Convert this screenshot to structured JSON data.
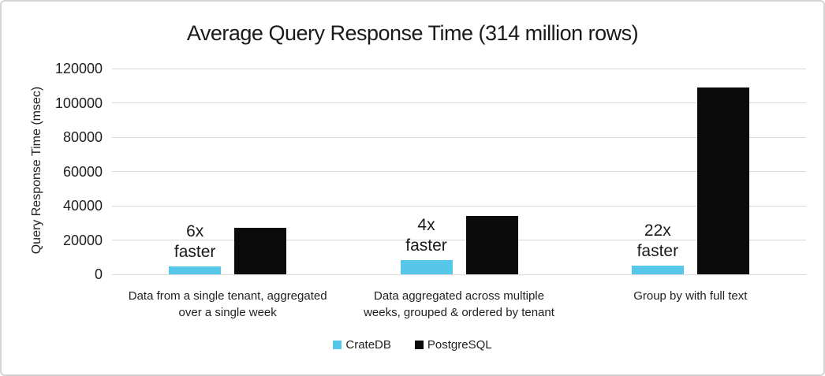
{
  "frame": {
    "background": "#ffffff",
    "border_color": "#d4d4d4"
  },
  "chart_data": {
    "type": "bar",
    "title": "Average Query Response Time (314 million rows)",
    "xlabel": "",
    "ylabel": "Query Response Time (msec)",
    "ylim": [
      0,
      120000
    ],
    "ytick_step": 20000,
    "yticks": [
      0,
      20000,
      40000,
      60000,
      80000,
      100000,
      120000
    ],
    "grid": true,
    "gridline_color": "#d9d9d9",
    "legend_position": "bottom",
    "categories": [
      "Data from a single tenant, aggregated over a single week",
      "Data aggregated across multiple weeks, grouped & ordered by tenant",
      "Group by with full text"
    ],
    "category_lines": [
      [
        "Data from a single tenant, aggregated",
        "over a single week"
      ],
      [
        "Data aggregated across multiple",
        "weeks, grouped & ordered by tenant"
      ],
      [
        "Group by with full text"
      ]
    ],
    "series": [
      {
        "name": "CrateDB",
        "color": "#56C7E8",
        "values": [
          4500,
          8200,
          5000
        ]
      },
      {
        "name": "PostgreSQL",
        "color": "#0b0b0b",
        "values": [
          27000,
          34000,
          109000
        ]
      }
    ],
    "annotations": [
      {
        "multiplier": "6x",
        "word": "faster"
      },
      {
        "multiplier": "4x",
        "word": "faster"
      },
      {
        "multiplier": "22x",
        "word": "faster"
      }
    ]
  }
}
